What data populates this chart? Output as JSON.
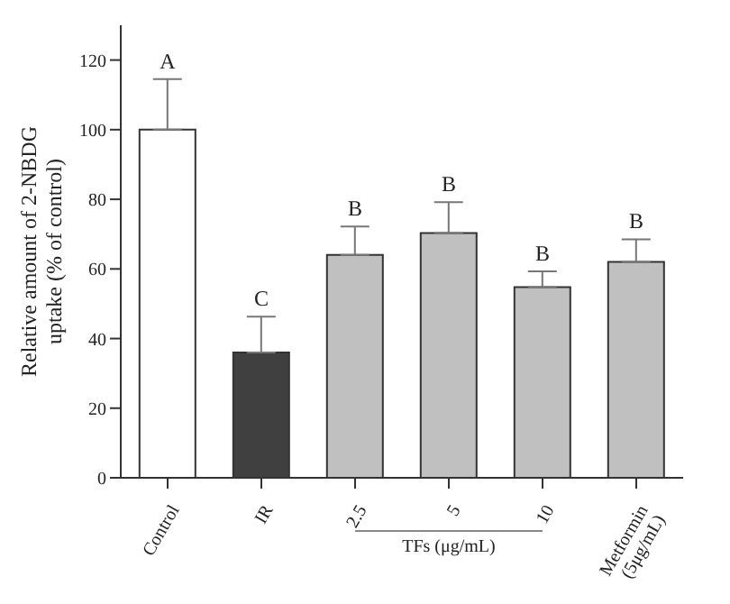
{
  "chart_data": {
    "type": "bar",
    "ylabel": "Relative amount of 2-NBDG uptake (% of control)",
    "xlabel": "TFs (μg/mL)",
    "categories": [
      "Control",
      "IR",
      "2.5",
      "5",
      "10",
      "Metformin\n(5μg/mL)"
    ],
    "values": [
      100,
      36,
      64,
      70.3,
      54.8,
      62
    ],
    "colors": [
      "#ffffff",
      "#404040",
      "#c0c0c0",
      "#c0c0c0",
      "#c0c0c0",
      "#c0c0c0"
    ],
    "errors": [
      [
        100,
        114.5
      ],
      [
        36,
        46.3
      ],
      [
        64,
        72.2
      ],
      [
        70.3,
        79.2
      ],
      [
        54.8,
        59.3
      ],
      [
        62,
        68.5
      ]
    ],
    "ylim": [
      0,
      130
    ],
    "yticks": [
      0,
      20,
      40,
      60,
      80,
      100,
      120
    ],
    "grid": false,
    "annotations": [
      {
        "text": "A",
        "x": "Control",
        "y": 114.5
      },
      {
        "text": "C",
        "x": "IR",
        "y": 46.3
      },
      {
        "text": "B",
        "x": "2.5",
        "y": 72.2
      },
      {
        "text": "B",
        "x": "5",
        "y": 79.2
      },
      {
        "text": "B",
        "x": "10",
        "y": 59.3
      },
      {
        "text": "B",
        "x": "Metformin\n(5μg/mL)",
        "y": 68.5
      }
    ]
  }
}
